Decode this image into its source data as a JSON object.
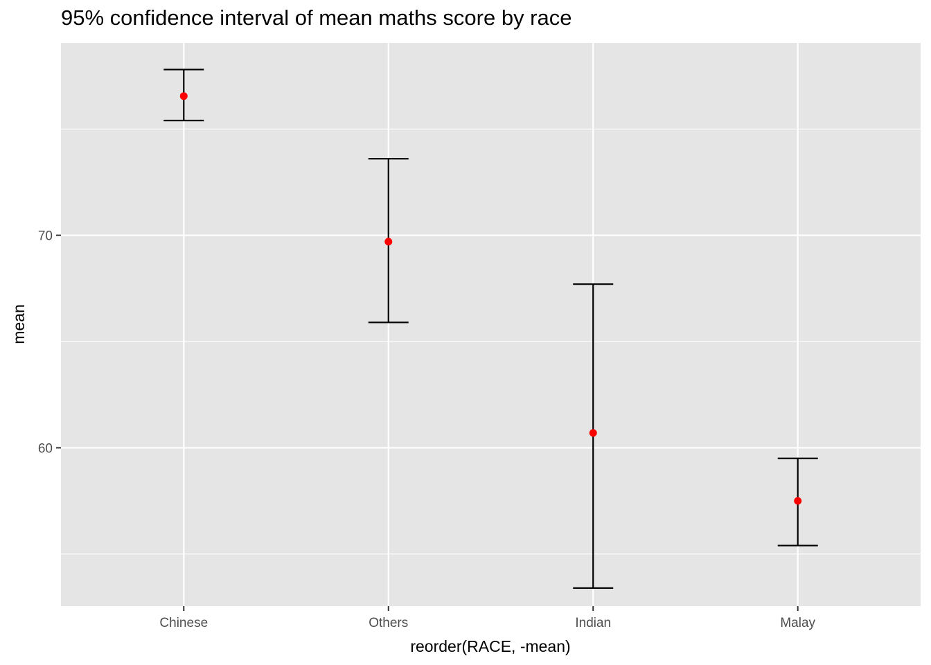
{
  "chart_data": {
    "type": "errorbar",
    "title": "95% confidence interval of mean maths score by race",
    "xlabel": "reorder(RACE, -mean)",
    "ylabel": "mean",
    "categories": [
      "Chinese",
      "Others",
      "Indian",
      "Malay"
    ],
    "mean": [
      76.55,
      69.7,
      60.7,
      57.5
    ],
    "lower": [
      75.4,
      65.9,
      53.4,
      55.4
    ],
    "upper": [
      77.8,
      73.6,
      67.7,
      59.5
    ],
    "ylim": [
      52.55,
      79.05
    ],
    "yticks": [
      60,
      70
    ],
    "yticks_minor": [
      55,
      65,
      75
    ],
    "colors": {
      "panel_bg": "#e5e5e5",
      "grid": "#ffffff",
      "errorbar": "#000000",
      "point": "#ff0000"
    },
    "grid": true,
    "legend": "none"
  }
}
